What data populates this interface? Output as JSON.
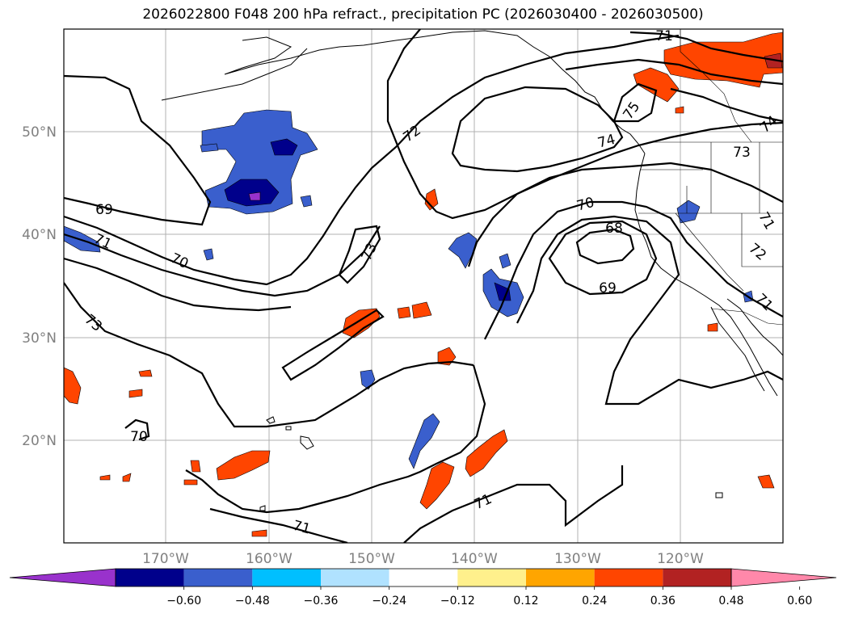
{
  "title": "2026022800 F048 200 hPa refract., precipitation PC (2026030400 - 2026030500)",
  "map": {
    "lat_labels": [
      "50°N",
      "40°N",
      "30°N",
      "20°N"
    ],
    "lon_labels": [
      "170°W",
      "160°W",
      "150°W",
      "140°W",
      "130°W",
      "120°W"
    ],
    "grid": true,
    "contour_labels": [
      "71",
      "75",
      "74",
      "74",
      "73",
      "72",
      "69",
      "71",
      "70",
      "73",
      "70",
      "68",
      "69",
      "73",
      "71",
      "72",
      "71",
      "70",
      "71",
      "71"
    ]
  },
  "colorbar": {
    "ticks": [
      "−0.60",
      "−0.48",
      "−0.36",
      "−0.24",
      "−0.12",
      "0.12",
      "0.24",
      "0.36",
      "0.48",
      "0.60"
    ],
    "colors": [
      "#9932cc",
      "#00008b",
      "#3a5fcd",
      "#00bfff",
      "#b0e2ff",
      "#ffffff",
      "#fff08c",
      "#ffa500",
      "#ff4500",
      "#b22222",
      "#ff88aa"
    ],
    "extend": "both"
  }
}
